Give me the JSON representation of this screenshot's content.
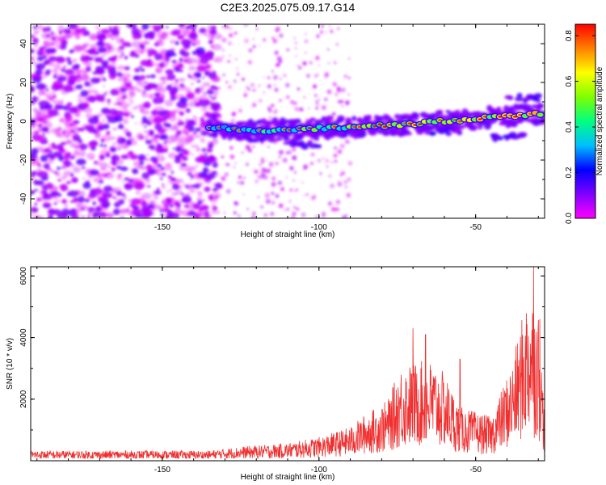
{
  "chart_data": [
    {
      "type": "heatmap",
      "title": "C2E3.2025.075.09.17.G14",
      "xlabel": "Height of straight line (km)",
      "ylabel": "Frequency (Hz)",
      "xlim": [
        -192,
        -28
      ],
      "ylim": [
        -50,
        50
      ],
      "xticks": [
        -150,
        -100,
        -50
      ],
      "yticks": [
        40,
        20,
        0,
        -20,
        -40
      ],
      "colorbar": {
        "label": "Normalized spectral amplitude",
        "range": [
          0.0,
          0.85
        ],
        "ticks": [
          0.0,
          0.2,
          0.4,
          0.6,
          0.8
        ],
        "colormap": [
          "#ff00ff",
          "#7f00ff",
          "#0000ff",
          "#00bfff",
          "#00ff80",
          "#7fff00",
          "#ffff00",
          "#ff8000",
          "#ff0000"
        ]
      },
      "ridge": {
        "description": "main spectral ridge",
        "points": [
          {
            "x": -135,
            "y": -3
          },
          {
            "x": -120,
            "y": -5
          },
          {
            "x": -105,
            "y": -4
          },
          {
            "x": -90,
            "y": -3
          },
          {
            "x": -75,
            "y": -2
          },
          {
            "x": -60,
            "y": 0
          },
          {
            "x": -45,
            "y": 2
          },
          {
            "x": -30,
            "y": 4
          }
        ],
        "secondary_points": [
          {
            "x": -105,
            "y": -12
          },
          {
            "x": -60,
            "y": -5
          },
          {
            "x": -40,
            "y": -8
          },
          {
            "x": -35,
            "y": 12
          }
        ],
        "noise_region_x": [
          -192,
          -135
        ]
      }
    },
    {
      "type": "line",
      "title": "",
      "xlabel": "Height of straight line (km)",
      "ylabel": "SNR (10 * v/v)",
      "xlim": [
        -192,
        -28
      ],
      "ylim": [
        0,
        6300
      ],
      "xticks": [
        -150,
        -100,
        -50
      ],
      "yticks": [
        2000,
        4000,
        6000
      ],
      "color": "#f03030",
      "envelope": [
        {
          "x": -192,
          "y": 300
        },
        {
          "x": -135,
          "y": 300
        },
        {
          "x": -125,
          "y": 420
        },
        {
          "x": -110,
          "y": 520
        },
        {
          "x": -100,
          "y": 700
        },
        {
          "x": -90,
          "y": 1000
        },
        {
          "x": -85,
          "y": 1400
        },
        {
          "x": -78,
          "y": 1800
        },
        {
          "x": -74,
          "y": 2800
        },
        {
          "x": -65,
          "y": 3000
        },
        {
          "x": -60,
          "y": 2600
        },
        {
          "x": -55,
          "y": 1600
        },
        {
          "x": -45,
          "y": 1300
        },
        {
          "x": -38,
          "y": 3000
        },
        {
          "x": -33,
          "y": 5200
        },
        {
          "x": -30,
          "y": 4500
        },
        {
          "x": -28,
          "y": 1500
        }
      ],
      "peaks": [
        {
          "x": -70,
          "y": 4300
        },
        {
          "x": -66,
          "y": 4100
        },
        {
          "x": -55,
          "y": 3300
        },
        {
          "x": -31.5,
          "y": 6300
        },
        {
          "x": -29.5,
          "y": 4600
        }
      ]
    }
  ]
}
